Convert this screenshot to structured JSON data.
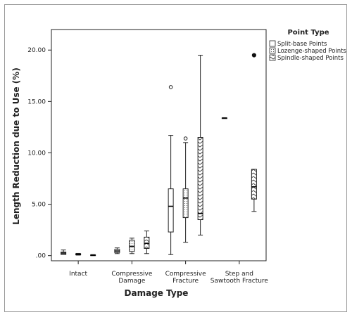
{
  "chart_data": {
    "type": "boxplot",
    "xlabel": "Damage Type",
    "ylabel": "Length Reduction due to Use (%)",
    "ylim": [
      -0.5,
      22
    ],
    "yticks": [
      0,
      5,
      10,
      15,
      20
    ],
    "ytick_labels": [
      ".00",
      "5.00",
      "10.00",
      "15.00",
      "20.00"
    ],
    "categories": [
      {
        "lines": [
          "Intact"
        ]
      },
      {
        "lines": [
          "Compressive",
          "Damage"
        ]
      },
      {
        "lines": [
          "Compressive",
          "Fracture"
        ]
      },
      {
        "lines": [
          "Step and",
          "Sawtooth Fracture"
        ]
      }
    ],
    "legend": {
      "title": "Point Type",
      "position": "top-right",
      "entries": [
        "Split-base Points",
        "Lozenge-shaped Points",
        "Spindle-shaped Points"
      ]
    },
    "series": [
      {
        "name": "Split-base Points",
        "pattern": "plain",
        "boxes": [
          {
            "category": 0,
            "whisker_low": 0.1,
            "q1": 0.12,
            "median": 0.25,
            "q3": 0.35,
            "whisker_high": 0.55,
            "outliers": []
          },
          {
            "category": 1,
            "whisker_low": 0.2,
            "q1": 0.3,
            "median": 0.45,
            "q3": 0.6,
            "whisker_high": 0.75,
            "outliers": []
          },
          {
            "category": 2,
            "whisker_low": 0.1,
            "q1": 2.3,
            "median": 4.8,
            "q3": 6.5,
            "whisker_high": 11.7,
            "outliers": [
              16.4
            ]
          },
          {
            "category": 3,
            "whisker_low": 13.4,
            "q1": 13.4,
            "median": 13.4,
            "q3": 13.4,
            "whisker_high": 13.4,
            "outliers": []
          }
        ]
      },
      {
        "name": "Lozenge-shaped Points",
        "pattern": "dots",
        "boxes": [
          {
            "category": 0,
            "whisker_low": 0.05,
            "q1": 0.08,
            "median": 0.12,
            "q3": 0.18,
            "whisker_high": 0.22,
            "outliers": []
          },
          {
            "category": 1,
            "whisker_low": 0.2,
            "q1": 0.4,
            "median": 0.9,
            "q3": 1.5,
            "whisker_high": 1.7,
            "outliers": []
          },
          {
            "category": 2,
            "whisker_low": 1.3,
            "q1": 3.7,
            "median": 5.6,
            "q3": 6.5,
            "whisker_high": 11.0,
            "outliers": [
              11.4
            ]
          }
        ]
      },
      {
        "name": "Spindle-shaped Points",
        "pattern": "zigzag",
        "boxes": [
          {
            "category": 0,
            "whisker_low": 0.0,
            "q1": 0.02,
            "median": 0.04,
            "q3": 0.07,
            "whisker_high": 0.1,
            "outliers": []
          },
          {
            "category": 1,
            "whisker_low": 0.2,
            "q1": 0.7,
            "median": 1.2,
            "q3": 1.8,
            "whisker_high": 2.4,
            "outliers": []
          },
          {
            "category": 2,
            "whisker_low": 2.0,
            "q1": 3.5,
            "median": 4.1,
            "q3": 11.5,
            "whisker_high": 19.5,
            "outliers": []
          },
          {
            "category": 3,
            "whisker_low": 4.3,
            "q1": 5.5,
            "median": 6.7,
            "q3": 8.4,
            "whisker_high": 8.4,
            "outliers": [],
            "extremes": [
              19.5
            ]
          }
        ]
      }
    ]
  }
}
